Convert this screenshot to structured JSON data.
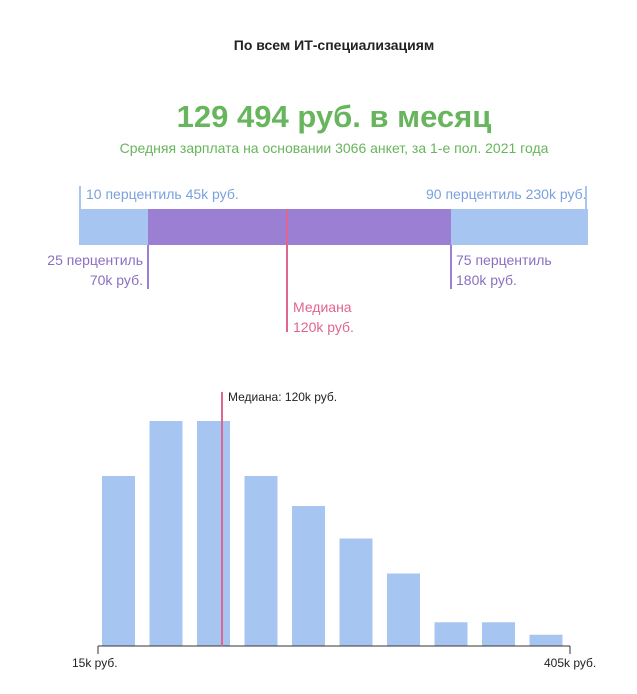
{
  "header": {
    "title": "По всем ИТ-специализациям",
    "headline": "129 494 руб. в месяц",
    "subheadline": "Средняя зарплата на основании 3066 анкет, за 1-е пол. 2021 года"
  },
  "percentiles": {
    "p10": {
      "label": "10 перцентиль 45k руб.",
      "value": 45
    },
    "p90": {
      "label": "90 перцентиль 230k руб.",
      "value": 230
    },
    "p25": {
      "line1": "25 перцентиль",
      "line2": "70k руб.",
      "value": 70
    },
    "p75": {
      "line1": "75 перцентиль",
      "line2": "180k руб.",
      "value": 180
    },
    "median": {
      "line1": "Медиана",
      "line2": "120k руб.",
      "value": 120
    }
  },
  "colors": {
    "green": "#67b55c",
    "light_blue": "#a7c5f1",
    "purple": "#9b7fd2",
    "pink": "#e0658f",
    "bar": "#a7c5f1"
  },
  "chart_data": {
    "type": "bar",
    "x_min_label": "15k руб.",
    "x_max_label": "405k руб.",
    "x_range": [
      15,
      405
    ],
    "median_label": "Медиана: 120k руб.",
    "median_value": 120,
    "bars": [
      {
        "value": 68
      },
      {
        "value": 90
      },
      {
        "value": 90
      },
      {
        "value": 68
      },
      {
        "value": 56
      },
      {
        "value": 43
      },
      {
        "value": 29
      },
      {
        "value": 9.5
      },
      {
        "value": 9.5
      },
      {
        "value": 4.5
      }
    ],
    "ylim": [
      0,
      100
    ]
  }
}
